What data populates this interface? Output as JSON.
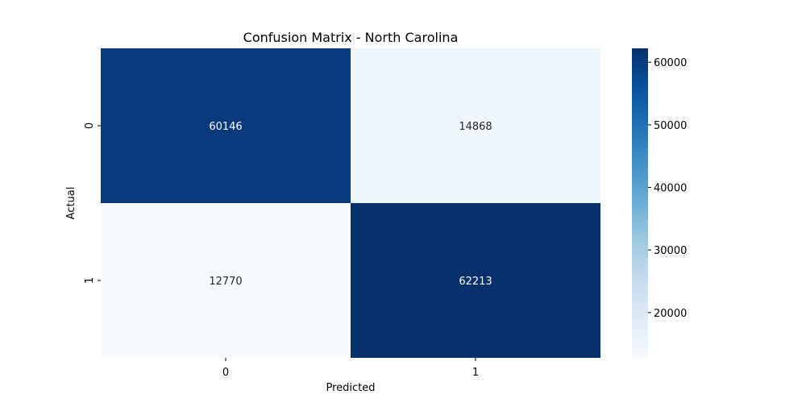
{
  "chart_data": {
    "type": "heatmap",
    "title": "Confusion Matrix - North Carolina",
    "xlabel": "Predicted",
    "ylabel": "Actual",
    "x_categories": [
      "0",
      "1"
    ],
    "y_categories": [
      "0",
      "1"
    ],
    "values": [
      [
        60146,
        14868
      ],
      [
        12770,
        62213
      ]
    ],
    "colormap": "Blues",
    "color_range": [
      12770,
      62213
    ],
    "colorbar_ticks": [
      20000,
      30000,
      40000,
      50000,
      60000
    ],
    "annotations": true,
    "grid": false
  }
}
